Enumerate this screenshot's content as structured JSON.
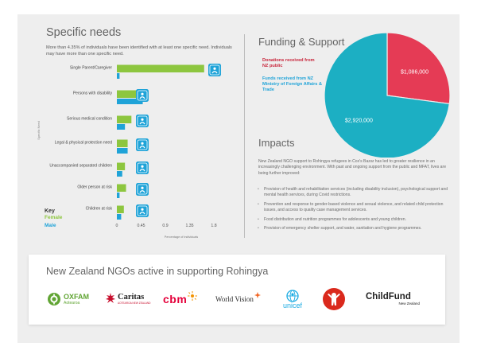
{
  "specific_needs": {
    "title": "Specific needs",
    "intro": "More than 4.35% of individuals have been identified with at least one specific need. Individuals may have more than one specific need.",
    "key": {
      "title": "Key",
      "female": "Female",
      "male": "Male"
    },
    "colors": {
      "female": "#8dc63f",
      "male": "#1fa3d8"
    }
  },
  "funding": {
    "title": "Funding & Support",
    "legend_nz": "Donations received from NZ public",
    "legend_mfat": "Funds received from NZ Ministry of Foreign Affairs & Trade",
    "colors": {
      "nz": "#e53b55",
      "mfat": "#1cafc3"
    }
  },
  "impacts": {
    "title": "Impacts",
    "intro": "New Zealand NGO support to Rohingya refugees in Cox's Bazar has led to greater resilience in an increasingly challenging environment. With past and ongoing support from the public and MFAT, lives are being further improved:",
    "items": [
      "Provision of health and rehabilitation services (including disability inclusion), psychological support and mental health services, during Covid restrictions.",
      "Prevention and response to gender-based violence and sexual violence, and related child protection issues, and access to quality case management services.",
      "Food distribution and nutrition programmes for adolescents and young children.",
      "Provision of emergency shelter support, and water, sanitation and hygiene programmes."
    ]
  },
  "ngos": {
    "title": "New Zealand NGOs active in supporting Rohingya",
    "logos": [
      {
        "name": "OXFAM",
        "sub": "Aotearoa",
        "color": "#61a534"
      },
      {
        "name": "Caritas",
        "sub": "AOTEAROA NEW ZEALAND",
        "color": "#c8102e"
      },
      {
        "name": "cbm",
        "color": "#e4003a"
      },
      {
        "name": "World Vision",
        "color": "#2b2b2b",
        "accent": "#f26522"
      },
      {
        "name": "unicef",
        "color": "#1cabe2"
      },
      {
        "name": "Save the Children",
        "color": "#da291c"
      },
      {
        "name": "ChildFund",
        "sub": "New Zealand",
        "color": "#222222",
        "accent": "#6fb33f"
      }
    ]
  },
  "chart_data": [
    {
      "type": "bar",
      "orientation": "horizontal",
      "categories": [
        "Single Parent/Caregiver",
        "Persons with disability",
        "Serious medical condition",
        "Legal & physical protection need",
        "Unaccompanied separated children",
        "Older person at risk",
        "Children at risk"
      ],
      "series": [
        {
          "name": "Female",
          "values": [
            1.62,
            0.48,
            0.27,
            0.2,
            0.15,
            0.17,
            0.13
          ]
        },
        {
          "name": "Male",
          "values": [
            0.05,
            0.48,
            0.15,
            0.2,
            0.1,
            0.05,
            0.08
          ]
        }
      ],
      "xticks": [
        "0",
        "0.45",
        "0.9",
        "1.35",
        "1.8"
      ],
      "xlim": [
        0,
        1.8
      ],
      "xlabel": "Percentage of individuals",
      "ylabel": "Specific Need",
      "icons": [
        "parent-child-icon",
        "wheelchair-icon",
        "heart-medical-icon",
        "shield-icon",
        "children-icon",
        "elderly-person-icon",
        "children-icon"
      ]
    },
    {
      "type": "pie",
      "slices": [
        {
          "label": "$1,086,000",
          "value": 1086000,
          "color": "#e53b55"
        },
        {
          "label": "$2,920,000",
          "value": 2920000,
          "color": "#1cafc3"
        }
      ]
    }
  ]
}
